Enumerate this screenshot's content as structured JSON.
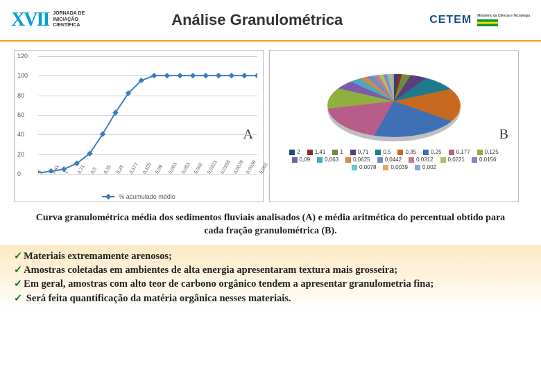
{
  "header": {
    "roman": "XVII",
    "logo_line1": "JORNADA DE",
    "logo_line2": "INICIAÇÃO",
    "logo_line3": "CIENTÍFICA",
    "title": "Análise Granulométrica",
    "cetem": "CETEM",
    "gov": "Ministério da Ciência e Tecnologia"
  },
  "line_chart": {
    "type": "line",
    "panel_label": "A",
    "ylim": [
      0,
      120
    ],
    "ytick_step": 20,
    "yticks": [
      0,
      20,
      40,
      60,
      80,
      100,
      120
    ],
    "categories": [
      "2",
      "1,41",
      "1",
      "0,71",
      "0,5",
      "0,35",
      "0,25",
      "0,177",
      "0,125",
      "0,09",
      "0,063",
      "0,053",
      "0,042",
      "0,0221",
      "0,0158",
      "0,0078",
      "0,0039",
      "0,002"
    ],
    "values": [
      0,
      2,
      4,
      10,
      20,
      40,
      62,
      82,
      95,
      100,
      100,
      100,
      100,
      100,
      100,
      100,
      100,
      100
    ],
    "line_color": "#3a7cc4",
    "marker_color": "#3a7cc4",
    "marker": "diamond",
    "line_width": 2,
    "grid_color": "#d0d0d0",
    "background_color": "#ffffff",
    "legend_label": "% acumulado médio",
    "label_fontsize": 9
  },
  "pie_chart": {
    "type": "pie",
    "panel_label": "B",
    "background_color": "#ffffff",
    "slices": [
      {
        "label": "2",
        "value": 1.0,
        "color": "#1f4e79"
      },
      {
        "label": "1,41",
        "value": 1.2,
        "color": "#8b2a2a"
      },
      {
        "label": "1",
        "value": 2.5,
        "color": "#6e8b3d"
      },
      {
        "label": "0,71",
        "value": 4.5,
        "color": "#5a3d7a"
      },
      {
        "label": "0,5",
        "value": 9.0,
        "color": "#1f7a8c"
      },
      {
        "label": "0,35",
        "value": 17.0,
        "color": "#c76a1f"
      },
      {
        "label": "0,25",
        "value": 19.0,
        "color": "#3f6fb5"
      },
      {
        "label": "0,177",
        "value": 17.0,
        "color": "#b85c8a"
      },
      {
        "label": "0,125",
        "value": 11.0,
        "color": "#8fb03f"
      },
      {
        "label": "0,09",
        "value": 5.0,
        "color": "#7a5ca8"
      },
      {
        "label": "0,063",
        "value": 3.0,
        "color": "#4aa8c4"
      },
      {
        "label": "0,0625",
        "value": 2.0,
        "color": "#d48a3f"
      },
      {
        "label": "0,0442",
        "value": 2.0,
        "color": "#6a8fc4"
      },
      {
        "label": "0,0312",
        "value": 1.5,
        "color": "#c47a9a"
      },
      {
        "label": "0,0221",
        "value": 1.3,
        "color": "#a8c45a"
      },
      {
        "label": "0,0156",
        "value": 1.0,
        "color": "#9a7ac4"
      },
      {
        "label": "0,0078",
        "value": 0.8,
        "color": "#6ac4d4"
      },
      {
        "label": "0,0039",
        "value": 0.7,
        "color": "#e0a85a"
      },
      {
        "label": "0,002",
        "value": 0.5,
        "color": "#8aa8d4"
      }
    ]
  },
  "caption": "Curva granulométrica média dos sedimentos fluviais analisados (A) e média aritmética do percentual obtido para cada fração granulométrica (B).",
  "bullets": [
    "Materiais extremamente arenosos;",
    "Amostras coletadas em ambientes de alta energia apresentaram textura mais grosseira;",
    "Em geral, amostras com alto teor de carbono orgânico tendem a apresentar granulometria fina;",
    " Será feita quantificação da matéria orgânica nesses materiais."
  ],
  "colors": {
    "accent_orange": "#f4a020",
    "accent_blue": "#00a0d0",
    "body_bg_top": "#fde9c4"
  }
}
